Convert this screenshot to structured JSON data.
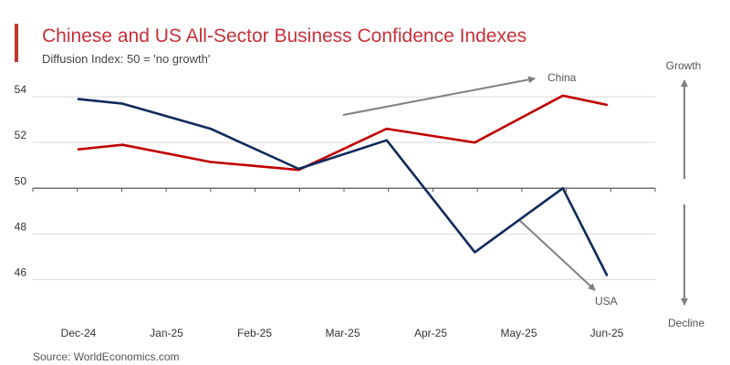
{
  "header": {
    "title": "Chinese and US All-Sector Business Confidence Indexes",
    "subtitle": "Diffusion Index: 50 = 'no growth'"
  },
  "footer": {
    "source": "Source: WorldEconomics.com"
  },
  "chart_data": {
    "type": "line",
    "title": "Chinese and US All-Sector Business Confidence Indexes",
    "subtitle": "Diffusion Index: 50 = 'no growth'",
    "categories": [
      "Dec-24",
      "Jan-25",
      "Feb-25",
      "Mar-25",
      "Apr-25",
      "May-25",
      "Jun-25"
    ],
    "x": [
      0,
      0.5,
      1,
      1.5,
      2,
      2.5,
      3,
      3.5,
      4,
      4.5,
      5,
      5.5,
      6
    ],
    "ylim": [
      44.5,
      56
    ],
    "yticks": [
      46,
      48,
      50,
      52,
      54
    ],
    "reference_line": 50,
    "grid": true,
    "colors": {
      "china": "#c00000",
      "usa": "#0f2a5c"
    },
    "series": [
      {
        "name": "China",
        "values": [
          51.7,
          51.9,
          null,
          51.15,
          null,
          50.8,
          null,
          52.6,
          null,
          52.0,
          null,
          54.05,
          53.65
        ]
      },
      {
        "name": "USA",
        "values": [
          53.9,
          53.7,
          null,
          52.6,
          null,
          50.85,
          null,
          52.1,
          null,
          47.2,
          null,
          50.0,
          46.2
        ]
      }
    ],
    "annotations": {
      "china_label": "China",
      "usa_label": "USA",
      "growth_label": "Growth",
      "decline_label": "Decline"
    }
  }
}
